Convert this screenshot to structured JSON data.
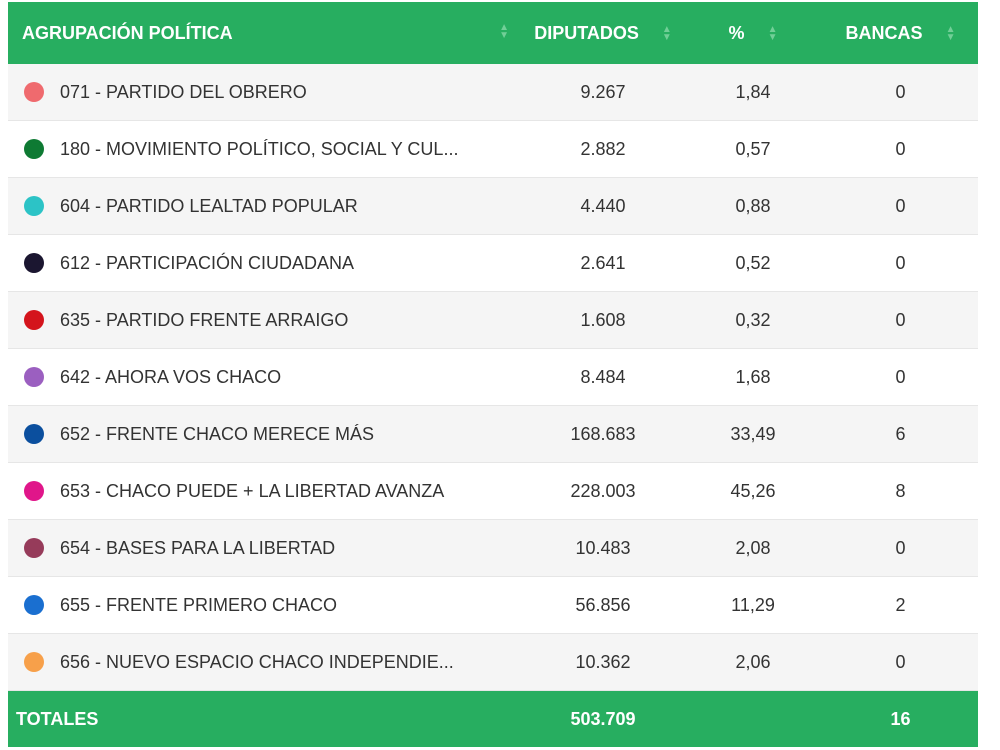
{
  "table": {
    "headers": {
      "party": "AGRUPACIÓN POLÍTICA",
      "votes": "DIPUTADOS",
      "percent": "%",
      "seats": "BANCAS"
    },
    "rows": [
      {
        "name": "071 - PARTIDO DEL OBRERO",
        "votes": "9.267",
        "percent": "1,84",
        "seats": "0",
        "color": "#ef6a6e",
        "icon": "party-color-dot"
      },
      {
        "name": "180 - MOVIMIENTO POLÍTICO, SOCIAL Y CUL...",
        "votes": "2.882",
        "percent": "0,57",
        "seats": "0",
        "color": "#0e7a33",
        "icon": "party-color-dot"
      },
      {
        "name": "604 - PARTIDO LEALTAD POPULAR",
        "votes": "4.440",
        "percent": "0,88",
        "seats": "0",
        "color": "#2cc3c6",
        "icon": "party-color-dot"
      },
      {
        "name": "612 - PARTICIPACIÓN CIUDADANA",
        "votes": "2.641",
        "percent": "0,52",
        "seats": "0",
        "color": "#1b1630",
        "icon": "party-color-dot"
      },
      {
        "name": "635 - PARTIDO FRENTE ARRAIGO",
        "votes": "1.608",
        "percent": "0,32",
        "seats": "0",
        "color": "#d4141c",
        "icon": "party-color-dot"
      },
      {
        "name": "642 - AHORA VOS CHACO",
        "votes": "8.484",
        "percent": "1,68",
        "seats": "0",
        "color": "#9b5fc0",
        "icon": "party-color-dot"
      },
      {
        "name": "652 - FRENTE CHACO MERECE MÁS",
        "votes": "168.683",
        "percent": "33,49",
        "seats": "6",
        "color": "#0b4f9e",
        "icon": "party-color-dot"
      },
      {
        "name": "653 - CHACO PUEDE + LA LIBERTAD AVANZA",
        "votes": "228.003",
        "percent": "45,26",
        "seats": "8",
        "color": "#e0168a",
        "icon": "party-color-dot"
      },
      {
        "name": "654 - BASES PARA LA LIBERTAD",
        "votes": "10.483",
        "percent": "2,08",
        "seats": "0",
        "color": "#963b5a",
        "icon": "party-color-dot"
      },
      {
        "name": "655 - FRENTE PRIMERO CHACO",
        "votes": "56.856",
        "percent": "11,29",
        "seats": "2",
        "color": "#1a6fd0",
        "icon": "party-color-dot"
      },
      {
        "name": "656 - NUEVO ESPACIO CHACO INDEPENDIE...",
        "votes": "10.362",
        "percent": "2,06",
        "seats": "0",
        "color": "#f7a04a",
        "icon": "party-color-dot"
      }
    ],
    "totals": {
      "label": "TOTALES",
      "votes": "503.709",
      "percent": "",
      "seats": "16"
    }
  },
  "theme": {
    "accent": "#27ae60",
    "sort_icon": "sort-arrows-icon"
  }
}
